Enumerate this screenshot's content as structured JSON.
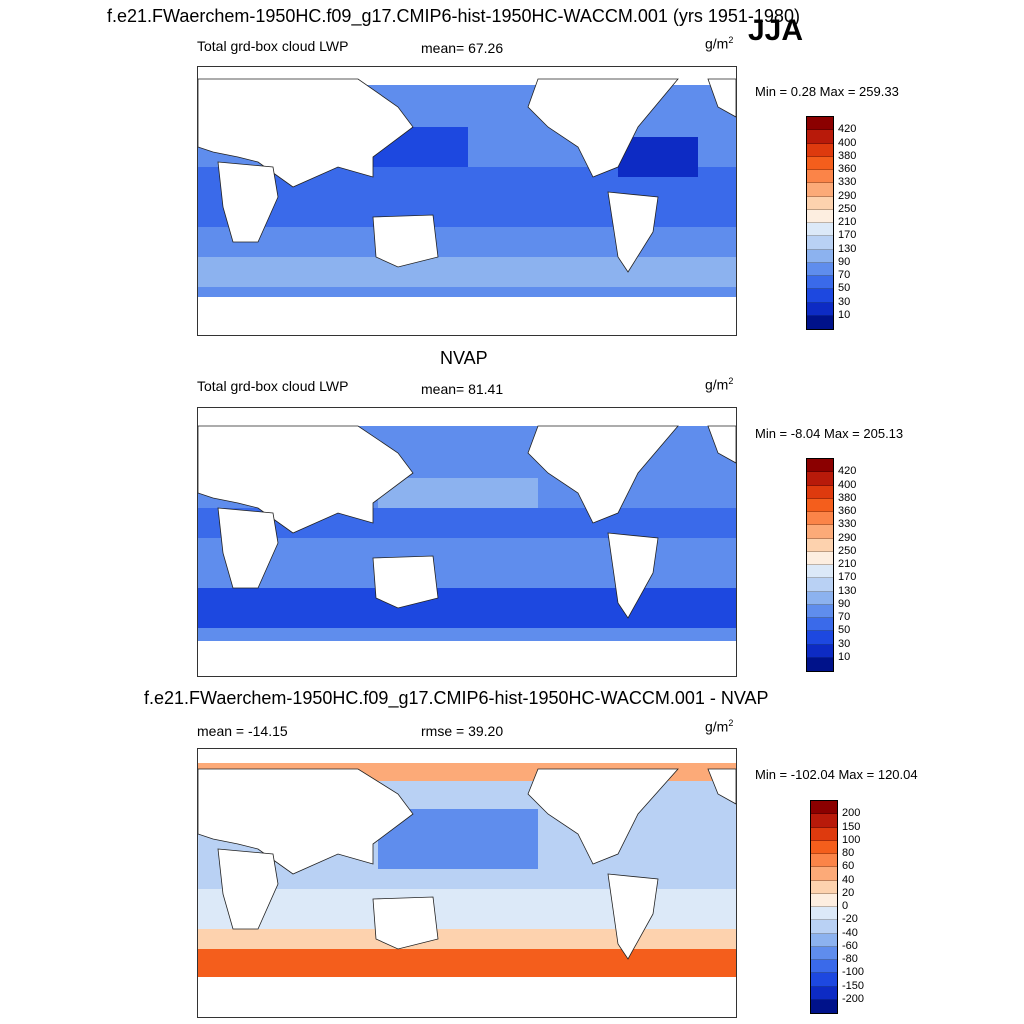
{
  "figure": {
    "main_title": "f.e21.FWaerchem-1950HC.f09_g17.CMIP6-hist-1950HC-WACCM.001 (yrs 1951-1980)",
    "season": "JJA"
  },
  "panels": [
    {
      "id": "model",
      "section_title": "",
      "left_label": "Total grd-box cloud LWP",
      "center_label": "mean=  67.26",
      "units": "g/m",
      "units_sup": "2",
      "minmax": "Min =   0.28 Max = 259.33",
      "legend_labels": [
        "420",
        "400",
        "380",
        "360",
        "330",
        "290",
        "250",
        "210",
        "170",
        "130",
        "90",
        "70",
        "50",
        "30",
        "10"
      ]
    },
    {
      "id": "obs",
      "section_title": "NVAP",
      "left_label": "Total grd-box cloud LWP",
      "center_label": "mean=  81.41",
      "units": "g/m",
      "units_sup": "2",
      "minmax": "Min =  -8.04 Max = 205.13",
      "legend_labels": [
        "420",
        "400",
        "380",
        "360",
        "330",
        "290",
        "250",
        "210",
        "170",
        "130",
        "90",
        "70",
        "50",
        "30",
        "10"
      ]
    },
    {
      "id": "diff",
      "section_title": "f.e21.FWaerchem-1950HC.f09_g17.CMIP6-hist-1950HC-WACCM.001 - NVAP",
      "left_label": "mean = -14.15",
      "center_label": "rmse =  39.20",
      "units": "g/m",
      "units_sup": "2",
      "minmax": "Min = -102.04 Max = 120.04",
      "legend_labels": [
        "200",
        "150",
        "100",
        "80",
        "60",
        "40",
        "20",
        "0",
        "-20",
        "-40",
        "-60",
        "-80",
        "-100",
        "-150",
        "-200"
      ]
    }
  ],
  "colors": {
    "lwp_scale": [
      "#8b0000",
      "#b81a0a",
      "#de3a0e",
      "#f45e1c",
      "#fb8448",
      "#fcaa78",
      "#fdd2ae",
      "#fdeee0",
      "#dce9f8",
      "#b9d1f4",
      "#8cb2ef",
      "#5f8ded",
      "#3a6aea",
      "#1d48e0",
      "#0d2bc4",
      "#00128a"
    ],
    "diff_scale": [
      "#8b0000",
      "#b81a0a",
      "#de3a0e",
      "#f45e1c",
      "#fb8448",
      "#fcaa78",
      "#fdd2ae",
      "#fdeee0",
      "#dce9f8",
      "#b9d1f4",
      "#8cb2ef",
      "#5f8ded",
      "#3a6aea",
      "#1d48e0",
      "#0d2bc4",
      "#00128a"
    ]
  }
}
